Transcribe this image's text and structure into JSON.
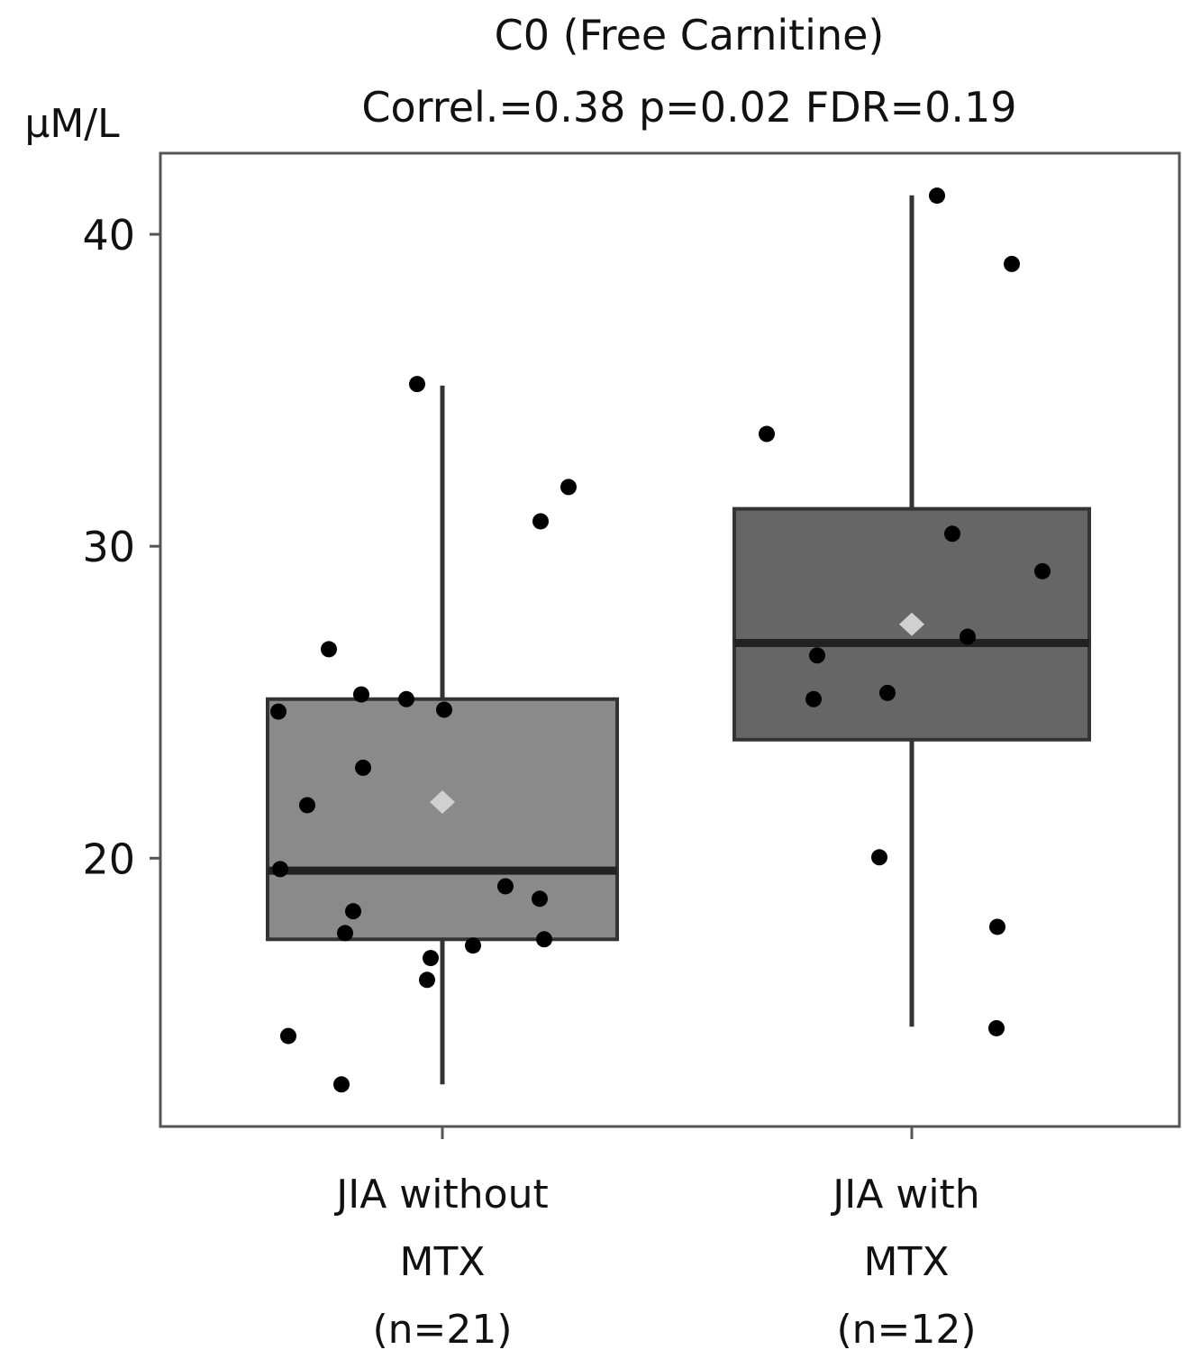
{
  "chart_data": {
    "type": "box",
    "title": "C0 (Free Carnitine)",
    "subtitle": "Correl.=0.38  p=0.02  FDR=0.19",
    "ylabel": "µM/L",
    "xlabel": "",
    "ylim": [
      11.4,
      42.6
    ],
    "yticks": [
      20,
      30,
      40
    ],
    "grid": false,
    "categories": [
      {
        "lines": [
          "JIA without",
          "MTX",
          "(n=21)"
        ]
      },
      {
        "lines": [
          "JIA with",
          "MTX",
          "(n=12)"
        ]
      }
    ],
    "groups": [
      {
        "q1": 17.4,
        "median": 19.6,
        "q3": 25.1,
        "whisker_low": 12.75,
        "whisker_high": 35.15,
        "mean": 21.8,
        "fill": "#8a8a8a",
        "points": [
          35.2,
          31.9,
          30.8,
          26.7,
          24.7,
          25.25,
          25.1,
          24.76,
          22.9,
          21.7,
          19.65,
          19.1,
          18.7,
          18.3,
          17.6,
          17.4,
          17.2,
          16.8,
          16.1,
          14.3,
          12.75
        ]
      },
      {
        "q1": 23.8,
        "median": 26.9,
        "q3": 31.2,
        "whisker_low": 14.6,
        "whisker_high": 41.25,
        "mean": 27.5,
        "fill": "#666666",
        "points": [
          41.24,
          39.05,
          33.6,
          30.4,
          29.2,
          27.1,
          26.5,
          25.1,
          25.3,
          20.03,
          17.8,
          14.55
        ]
      }
    ],
    "colors": {
      "frame": "#555555",
      "box_edge": "#333333",
      "point": "#000000",
      "mean_marker": "#d0d0d0"
    }
  }
}
